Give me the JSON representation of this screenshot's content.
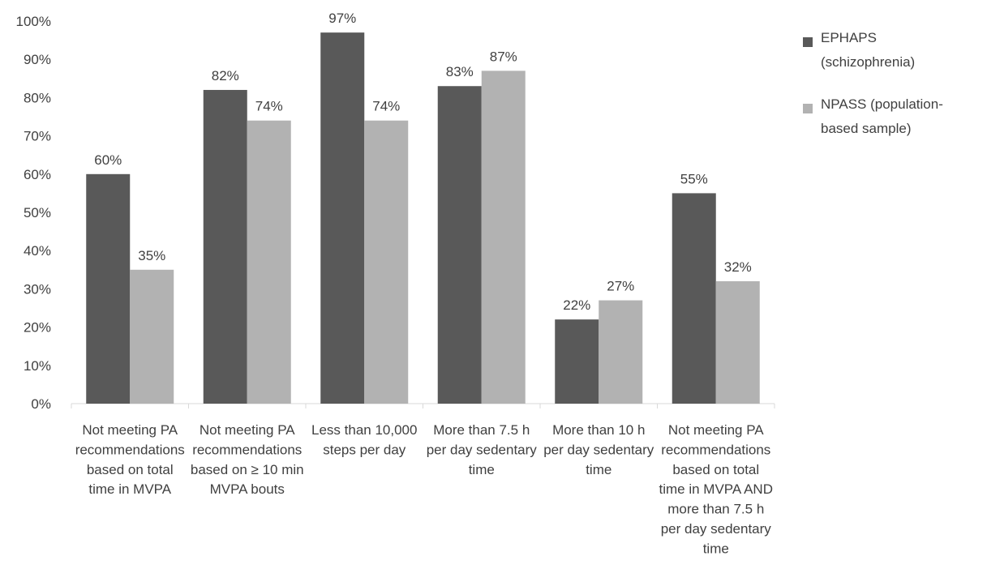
{
  "chart_data": {
    "type": "bar",
    "title": "",
    "xlabel": "",
    "ylabel": "",
    "ylim": [
      0,
      100
    ],
    "yticks": [
      "0%",
      "10%",
      "20%",
      "30%",
      "40%",
      "50%",
      "60%",
      "70%",
      "80%",
      "90%",
      "100%"
    ],
    "categories": [
      "Not meeting PA recommendations based on total time in MVPA",
      "Not meeting PA recommendations based on ≥ 10 min MVPA bouts",
      "Less than 10,000 steps per day",
      "More than 7.5 h per day sedentary time",
      "More than 10 h per day sedentary time",
      "Not meeting PA recommendations based on total time in MVPA AND more than 7.5 h per day sedentary time"
    ],
    "category_lines": [
      [
        "Not meeting PA",
        "recommendations",
        "based on total",
        "time in MVPA"
      ],
      [
        "Not meeting PA",
        "recommendations",
        "based on ≥ 10 min",
        "MVPA bouts"
      ],
      [
        "Less than 10,000",
        "steps per day"
      ],
      [
        "More than 7.5 h",
        "per day sedentary",
        "time"
      ],
      [
        "More than 10 h",
        "per day sedentary",
        "time"
      ],
      [
        "Not meeting PA",
        "recommendations",
        "based on total",
        "time in MVPA AND",
        "more than 7.5 h",
        "per day sedentary",
        "time"
      ]
    ],
    "series": [
      {
        "name": "EPHAPS (schizophrenia)",
        "legend_lines": [
          "EPHAPS",
          "(schizophrenia)"
        ],
        "color": "#595959",
        "values": [
          60,
          82,
          97,
          83,
          22,
          55
        ],
        "labels": [
          "60%",
          "82%",
          "97%",
          "83%",
          "22%",
          "55%"
        ]
      },
      {
        "name": "NPASS (population-based sample)",
        "legend_lines": [
          "NPASS (population-",
          "based sample)"
        ],
        "color": "#b2b2b2",
        "values": [
          35,
          74,
          74,
          87,
          27,
          32
        ],
        "labels": [
          "35%",
          "74%",
          "74%",
          "87%",
          "27%",
          "32%"
        ]
      }
    ],
    "grid": false,
    "legend_position": "top-right"
  }
}
